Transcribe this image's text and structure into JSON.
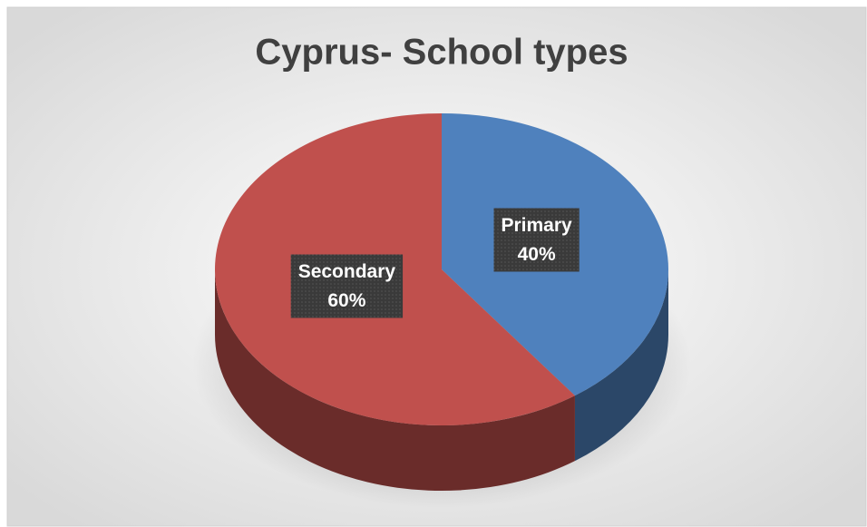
{
  "chart_data": {
    "type": "pie",
    "title": "Cyprus- School types",
    "categories": [
      "Primary",
      "Secondary"
    ],
    "values": [
      40,
      60
    ],
    "value_labels": [
      "40%",
      "60%"
    ],
    "colors": [
      "#4f81bd",
      "#c0504d"
    ]
  }
}
